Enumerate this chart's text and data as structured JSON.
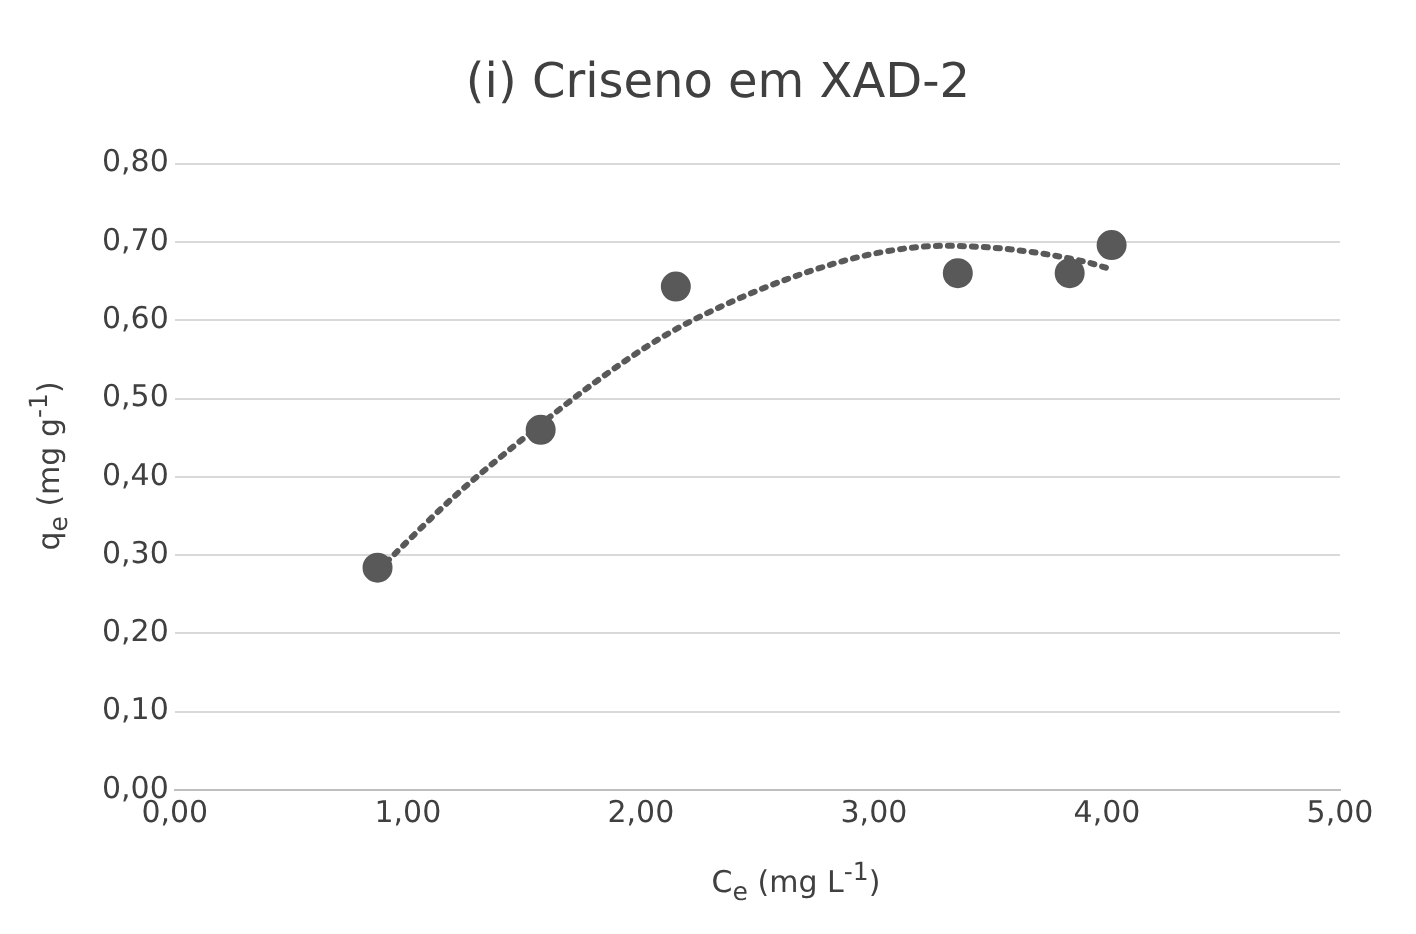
{
  "chart_data": {
    "type": "scatter",
    "title": "(i) Criseno em XAD-2",
    "xlabel": "C$_{e}$ (mg L$^{-1}$)",
    "ylabel": "q$_{e}$ (mg g$^{-1}$)",
    "series": [
      {
        "type": "scatter",
        "marker": "circle",
        "color": "#595959",
        "x": [
          0.87,
          1.57,
          2.15,
          3.36,
          3.84,
          4.02
        ],
        "values": [
          0.284,
          0.46,
          0.643,
          0.66,
          0.66,
          0.696
        ]
      },
      {
        "type": "line",
        "line_style": "dotted",
        "color": "#595959",
        "x": [
          0.87,
          1.2,
          1.5,
          1.8,
          2.1,
          2.4,
          2.7,
          3.0,
          3.3,
          3.6,
          3.9,
          4.02
        ],
        "values": [
          0.28,
          0.375,
          0.45,
          0.52,
          0.58,
          0.625,
          0.66,
          0.685,
          0.695,
          0.69,
          0.675,
          0.665
        ]
      }
    ],
    "xlim": [
      0,
      5
    ],
    "xticks": [
      {
        "value": 0,
        "label": "0,00"
      },
      {
        "value": 1,
        "label": "1,00"
      },
      {
        "value": 2,
        "label": "2,00"
      },
      {
        "value": 3,
        "label": "3,00"
      },
      {
        "value": 4,
        "label": "4,00"
      },
      {
        "value": 5,
        "label": "5,00"
      }
    ],
    "ylim": [
      0,
      0.8
    ],
    "yticks": [
      {
        "value": 0,
        "label": "0,00"
      },
      {
        "value": 0.1,
        "label": "0,10"
      },
      {
        "value": 0.2,
        "label": "0,20"
      },
      {
        "value": 0.3,
        "label": "0,30"
      },
      {
        "value": 0.4,
        "label": "0,40"
      },
      {
        "value": 0.5,
        "label": "0,50"
      },
      {
        "value": 0.6,
        "label": "0,60"
      },
      {
        "value": 0.7,
        "label": "0,70"
      },
      {
        "value": 0.8,
        "label": "0,80"
      }
    ],
    "grid": "y",
    "legend": false
  }
}
